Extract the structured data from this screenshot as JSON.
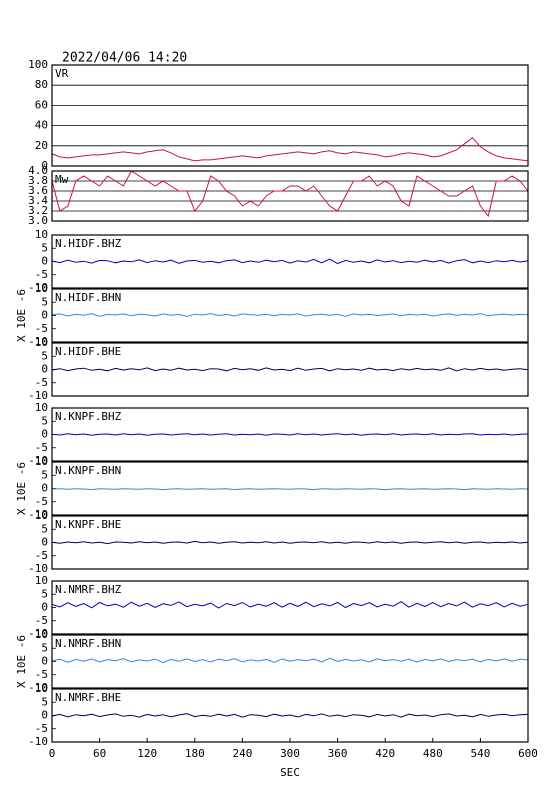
{
  "header": {
    "title": "2022/04/06  14:20"
  },
  "chart_data": {
    "type": "line",
    "ylabel": "X 10E -6",
    "xlabel": "SEC",
    "xlim": [
      0,
      600
    ],
    "xticks": [
      0,
      60,
      120,
      180,
      240,
      300,
      360,
      420,
      480,
      540,
      600
    ],
    "x": [
      0,
      10,
      20,
      30,
      40,
      50,
      60,
      70,
      80,
      90,
      100,
      110,
      120,
      130,
      140,
      150,
      160,
      170,
      180,
      190,
      200,
      210,
      220,
      230,
      240,
      250,
      260,
      270,
      280,
      290,
      300,
      310,
      320,
      330,
      340,
      350,
      360,
      370,
      380,
      390,
      400,
      410,
      420,
      430,
      440,
      450,
      460,
      470,
      480,
      490,
      500,
      510,
      520,
      530,
      540,
      550,
      560,
      570,
      580,
      590,
      600
    ],
    "series": [
      {
        "name": "VR",
        "color": "#d0103c",
        "grid": true,
        "ylim": [
          0,
          100
        ],
        "yticks": [
          0,
          20,
          40,
          60,
          80,
          100
        ],
        "values": [
          12,
          9,
          8,
          9,
          10,
          11,
          11,
          12,
          13,
          14,
          13,
          12,
          14,
          15,
          16,
          13,
          9,
          7,
          5,
          6,
          6,
          7,
          8,
          9,
          10,
          9,
          8,
          10,
          11,
          12,
          13,
          14,
          13,
          12,
          14,
          15,
          13,
          12,
          14,
          13,
          12,
          11,
          9,
          10,
          12,
          13,
          12,
          11,
          9,
          10,
          13,
          16,
          22,
          28,
          19,
          14,
          10,
          8,
          7,
          6,
          5
        ]
      },
      {
        "name": "Mw",
        "color": "#d0103c",
        "grid": true,
        "ylim": [
          3,
          4
        ],
        "yticks": [
          {
            "value": 3,
            "label": "3.0"
          },
          {
            "value": 3.2,
            "label": "3.2"
          },
          {
            "value": 3.4,
            "label": "3.4"
          },
          {
            "value": 3.6,
            "label": "3.6"
          },
          {
            "value": 3.8,
            "label": "3.8"
          },
          {
            "value": 4,
            "label": "4.0"
          }
        ],
        "values": [
          3.8,
          3.2,
          3.3,
          3.8,
          3.9,
          3.8,
          3.7,
          3.9,
          3.8,
          3.7,
          4.0,
          3.9,
          3.8,
          3.7,
          3.8,
          3.7,
          3.6,
          3.6,
          3.2,
          3.4,
          3.9,
          3.8,
          3.6,
          3.5,
          3.3,
          3.4,
          3.3,
          3.5,
          3.6,
          3.6,
          3.7,
          3.7,
          3.6,
          3.7,
          3.5,
          3.3,
          3.2,
          3.5,
          3.8,
          3.8,
          3.9,
          3.7,
          3.8,
          3.7,
          3.4,
          3.3,
          3.9,
          3.8,
          3.7,
          3.6,
          3.5,
          3.5,
          3.6,
          3.7,
          3.3,
          3.1,
          3.8,
          3.8,
          3.9,
          3.8,
          3.6
        ]
      },
      {
        "name": "N.HIDF.BHZ",
        "color": "#0000c0",
        "ylim": [
          -10,
          10
        ],
        "yticks": [
          -10,
          -5,
          0,
          5,
          10
        ],
        "values": [
          0.2,
          -0.4,
          0.5,
          -0.3,
          0.1,
          -0.6,
          0.4,
          0.3,
          -0.5,
          0.2,
          -0.1,
          0.6,
          -0.4,
          0.3,
          -0.2,
          0.5,
          -0.7,
          0.2,
          0.4,
          -0.3,
          0.1,
          -0.5,
          0.3,
          0.6,
          -0.4,
          0.2,
          -0.3,
          0.5,
          -0.1,
          0.4,
          -0.6,
          0.3,
          -0.2,
          0.8,
          -0.5,
          0.9,
          -0.8,
          0.4,
          -0.3,
          0.2,
          -0.5,
          0.6,
          -0.2,
          0.3,
          -0.4,
          0.1,
          -0.3,
          0.5,
          -0.2,
          0.4,
          -0.6,
          0.3,
          0.7,
          -0.5,
          0.2,
          -0.4,
          0.3,
          -0.1,
          0.4,
          -0.2,
          0.3
        ]
      },
      {
        "name": "N.HIDF.BHN",
        "color": "#2a8ee0",
        "ylim": [
          -10,
          10
        ],
        "yticks": [
          -10,
          -5,
          0,
          5,
          10
        ],
        "values": [
          0.3,
          0.6,
          -0.2,
          0.5,
          0.1,
          0.7,
          -0.3,
          0.4,
          0.2,
          0.6,
          -0.1,
          0.5,
          0.3,
          -0.2,
          0.6,
          0.1,
          0.4,
          -0.3,
          0.5,
          0.2,
          0.7,
          0.0,
          0.4,
          -0.2,
          0.6,
          0.3,
          0.1,
          0.5,
          -0.1,
          0.4,
          0.2,
          0.6,
          -0.2,
          0.3,
          0.5,
          0.1,
          0.4,
          -0.3,
          0.6,
          0.2,
          0.5,
          0.0,
          0.3,
          0.6,
          -0.1,
          0.4,
          0.2,
          0.5,
          -0.2,
          0.3,
          0.6,
          0.1,
          0.4,
          0.2,
          0.7,
          -0.1,
          0.3,
          0.5,
          0.2,
          0.4,
          0.3
        ]
      },
      {
        "name": "N.HIDF.BHE",
        "color": "#00005a",
        "ylim": [
          -10,
          10
        ],
        "yticks": [
          -10,
          -5,
          0,
          5,
          10
        ],
        "values": [
          -0.2,
          0.3,
          -0.4,
          0.2,
          0.5,
          -0.3,
          0.1,
          -0.5,
          0.4,
          -0.2,
          0.3,
          -0.1,
          0.6,
          -0.4,
          0.2,
          -0.3,
          0.5,
          -0.2,
          0.1,
          -0.4,
          0.3,
          0.2,
          -0.5,
          0.4,
          -0.1,
          0.3,
          -0.3,
          0.6,
          -0.2,
          0.1,
          -0.4,
          0.5,
          -0.3,
          0.2,
          0.4,
          -0.5,
          0.3,
          -0.1,
          0.2,
          -0.3,
          0.5,
          -0.2,
          0.1,
          -0.4,
          0.3,
          -0.2,
          0.4,
          -0.1,
          0.2,
          -0.3,
          0.6,
          -0.5,
          0.3,
          -0.2,
          0.4,
          -0.1,
          0.2,
          -0.3,
          0.1,
          0.3,
          -0.1
        ]
      },
      {
        "name": "N.KNPF.BHZ",
        "color": "#0000c0",
        "ylim": [
          -10,
          10
        ],
        "yticks": [
          -10,
          -5,
          0,
          5,
          10
        ],
        "values": [
          0.1,
          -0.2,
          0.3,
          -0.1,
          0.2,
          -0.3,
          0.1,
          0.2,
          -0.2,
          0.3,
          -0.1,
          0.2,
          -0.3,
          0.1,
          0.2,
          -0.2,
          0.1,
          0.3,
          -0.1,
          0.2,
          -0.2,
          0.1,
          0.3,
          -0.2,
          0.1,
          -0.1,
          0.2,
          -0.3,
          0.2,
          0.1,
          -0.2,
          0.3,
          -0.1,
          0.2,
          -0.2,
          0.1,
          0.3,
          -0.1,
          0.2,
          -0.3,
          0.1,
          0.2,
          -0.1,
          0.3,
          -0.2,
          0.1,
          0.2,
          -0.1,
          0.3,
          -0.2,
          0.1,
          -0.1,
          0.2,
          0.3,
          -0.2,
          0.1,
          -0.1,
          0.2,
          -0.2,
          0.1,
          0.2
        ]
      },
      {
        "name": "N.KNPF.BHN",
        "color": "#2a8ee0",
        "ylim": [
          -10,
          10
        ],
        "yticks": [
          -10,
          -5,
          0,
          5,
          10
        ],
        "values": [
          -0.2,
          -0.1,
          -0.3,
          -0.1,
          -0.2,
          -0.4,
          -0.1,
          -0.2,
          -0.3,
          -0.1,
          -0.2,
          -0.3,
          -0.1,
          -0.2,
          -0.4,
          -0.2,
          -0.1,
          -0.3,
          -0.2,
          -0.1,
          -0.3,
          -0.2,
          -0.1,
          -0.4,
          -0.2,
          -0.1,
          -0.3,
          -0.2,
          -0.1,
          -0.2,
          -0.3,
          -0.1,
          -0.2,
          -0.4,
          -0.1,
          -0.2,
          -0.3,
          -0.1,
          -0.2,
          -0.3,
          -0.1,
          -0.2,
          -0.4,
          -0.2,
          -0.1,
          -0.3,
          -0.2,
          -0.1,
          -0.3,
          -0.2,
          -0.1,
          -0.2,
          -0.4,
          -0.1,
          -0.2,
          -0.3,
          -0.1,
          -0.2,
          -0.3,
          -0.1,
          -0.2
        ]
      },
      {
        "name": "N.KNPF.BHE",
        "color": "#00005a",
        "ylim": [
          -10,
          10
        ],
        "yticks": [
          -10,
          -5,
          0,
          5,
          10
        ],
        "values": [
          0.1,
          -0.3,
          0.2,
          -0.1,
          0.3,
          -0.2,
          0.1,
          -0.4,
          0.2,
          0.1,
          -0.2,
          0.3,
          -0.1,
          0.2,
          -0.3,
          0.1,
          0.2,
          -0.2,
          0.4,
          -0.1,
          0.2,
          -0.3,
          0.1,
          0.3,
          -0.2,
          0.1,
          -0.1,
          0.3,
          -0.2,
          0.2,
          -0.3,
          0.1,
          0.2,
          -0.1,
          0.3,
          -0.2,
          0.1,
          -0.3,
          0.2,
          0.1,
          -0.2,
          0.3,
          -0.1,
          0.2,
          -0.3,
          0.1,
          0.2,
          -0.2,
          0.1,
          0.3,
          -0.1,
          0.2,
          -0.3,
          0.1,
          0.2,
          -0.2,
          0.1,
          -0.1,
          0.2,
          -0.2,
          0.1
        ]
      },
      {
        "name": "N.NMRF.BHZ",
        "color": "#0000c0",
        "ylim": [
          -10,
          10
        ],
        "yticks": [
          -10,
          -5,
          0,
          5,
          10
        ],
        "values": [
          1.2,
          0.2,
          1.8,
          0.4,
          1.5,
          -0.1,
          1.9,
          0.6,
          1.3,
          0.1,
          2.0,
          0.5,
          1.6,
          0.0,
          1.4,
          0.8,
          2.1,
          0.3,
          1.2,
          0.6,
          1.7,
          -0.2,
          1.5,
          0.7,
          1.9,
          0.2,
          1.3,
          0.5,
          1.8,
          0.1,
          1.6,
          0.4,
          2.0,
          0.3,
          1.4,
          0.6,
          1.9,
          0.0,
          1.5,
          0.7,
          1.8,
          0.2,
          1.3,
          0.5,
          2.2,
          0.1,
          1.6,
          0.4,
          1.9,
          0.3,
          1.5,
          0.6,
          2.0,
          0.1,
          1.4,
          0.7,
          1.8,
          0.2,
          1.6,
          0.5,
          1.2
        ]
      },
      {
        "name": "N.NMRF.BHN",
        "color": "#2a8ee0",
        "ylim": [
          -10,
          10
        ],
        "yticks": [
          -10,
          -5,
          0,
          5,
          10
        ],
        "values": [
          0.2,
          0.9,
          -0.3,
          0.8,
          0.1,
          1.0,
          -0.2,
          0.7,
          0.3,
          1.1,
          -0.1,
          0.6,
          0.2,
          0.9,
          -0.4,
          0.8,
          0.1,
          1.0,
          0.0,
          0.7,
          -0.2,
          0.9,
          0.3,
          1.1,
          -0.1,
          0.6,
          0.2,
          0.8,
          -0.3,
          1.0,
          0.1,
          0.7,
          0.3,
          0.9,
          -0.2,
          1.2,
          0.0,
          0.8,
          0.2,
          0.6,
          -0.1,
          1.0,
          0.3,
          0.7,
          0.1,
          0.9,
          -0.2,
          0.8,
          0.2,
          1.0,
          0.0,
          0.7,
          0.3,
          0.9,
          -0.1,
          0.8,
          0.2,
          1.0,
          0.1,
          0.9,
          0.6
        ]
      },
      {
        "name": "N.NMRF.BHE",
        "color": "#00005a",
        "ylim": [
          -10,
          10
        ],
        "yticks": [
          -10,
          -5,
          0,
          5,
          10
        ],
        "values": [
          -0.2,
          0.4,
          -0.5,
          0.3,
          -0.1,
          0.5,
          -0.4,
          0.2,
          0.6,
          -0.3,
          0.1,
          -0.6,
          0.4,
          -0.2,
          0.3,
          -0.5,
          0.2,
          0.7,
          -0.4,
          0.1,
          -0.3,
          0.5,
          -0.2,
          0.4,
          -0.6,
          0.3,
          0.1,
          -0.4,
          0.5,
          -0.2,
          0.2,
          -0.5,
          0.4,
          -0.1,
          0.6,
          -0.3,
          0.2,
          -0.4,
          0.3,
          0.1,
          -0.5,
          0.4,
          -0.2,
          0.3,
          -0.6,
          0.5,
          -0.1,
          0.2,
          -0.4,
          0.3,
          0.6,
          -0.2,
          0.1,
          -0.5,
          0.4,
          -0.3,
          0.2,
          0.5,
          -0.1,
          0.3,
          0.4
        ]
      }
    ]
  }
}
